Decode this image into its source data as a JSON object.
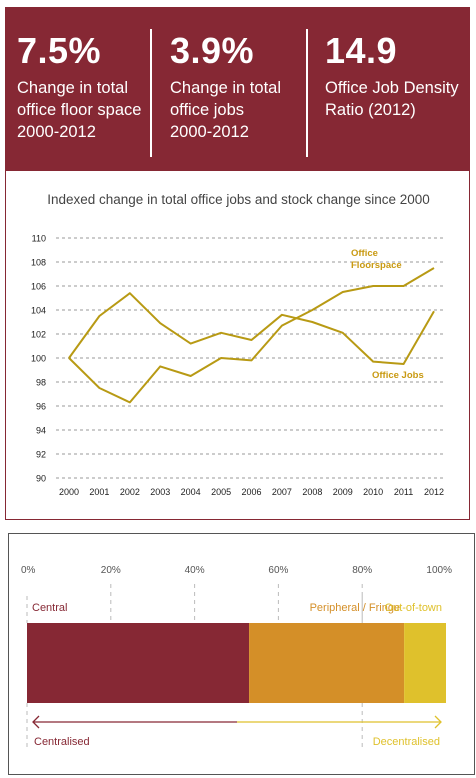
{
  "stats": [
    {
      "value": "7.5%",
      "label": "Change in total\noffice floor space\n2000-2012"
    },
    {
      "value": "3.9%",
      "label": "Change in total\noffice jobs\n2000-2012"
    },
    {
      "value": "14.9",
      "label": "Office Job Density\nRatio (2012)"
    }
  ],
  "colors": {
    "maroon": "#862834",
    "orange": "#d48f28",
    "yellow": "#dfc12c",
    "line": "#b89a14",
    "label": "#c99a12"
  },
  "chart_data": [
    {
      "type": "line",
      "title": "Indexed change in total office jobs and stock change since 2000",
      "x": [
        "2000",
        "2001",
        "2002",
        "2003",
        "2004",
        "2005",
        "2006",
        "2007",
        "2008",
        "2009",
        "2010",
        "2011",
        "2012"
      ],
      "ylim": [
        90,
        110
      ],
      "yticks": [
        "90",
        "92",
        "94",
        "96",
        "98",
        "100",
        "102",
        "104",
        "106",
        "108",
        "110"
      ],
      "grid": true,
      "series": [
        {
          "name": "Office Floorspace",
          "values": [
            100,
            97.5,
            96.3,
            99.3,
            98.5,
            100,
            99.8,
            102.7,
            104,
            105.5,
            106,
            106,
            107.5
          ]
        },
        {
          "name": "Office Jobs",
          "values": [
            100,
            103.5,
            105.4,
            102.9,
            101.2,
            102.1,
            101.5,
            103.6,
            103,
            102.1,
            99.7,
            99.5,
            103.9
          ]
        }
      ]
    },
    {
      "type": "bar",
      "orientation": "horizontal-stacked",
      "ticks": [
        "0%",
        "20%",
        "40%",
        "60%",
        "80%",
        "100%"
      ],
      "xlim": [
        0,
        100
      ],
      "segments": [
        {
          "name": "Central",
          "value": 53
        },
        {
          "name": "Peripheral / Fringe",
          "value": 37
        },
        {
          "name": "Out-of-town",
          "value": 10
        }
      ],
      "arrow_labels": {
        "left": "Centralised",
        "right": "Decentralised"
      }
    }
  ]
}
